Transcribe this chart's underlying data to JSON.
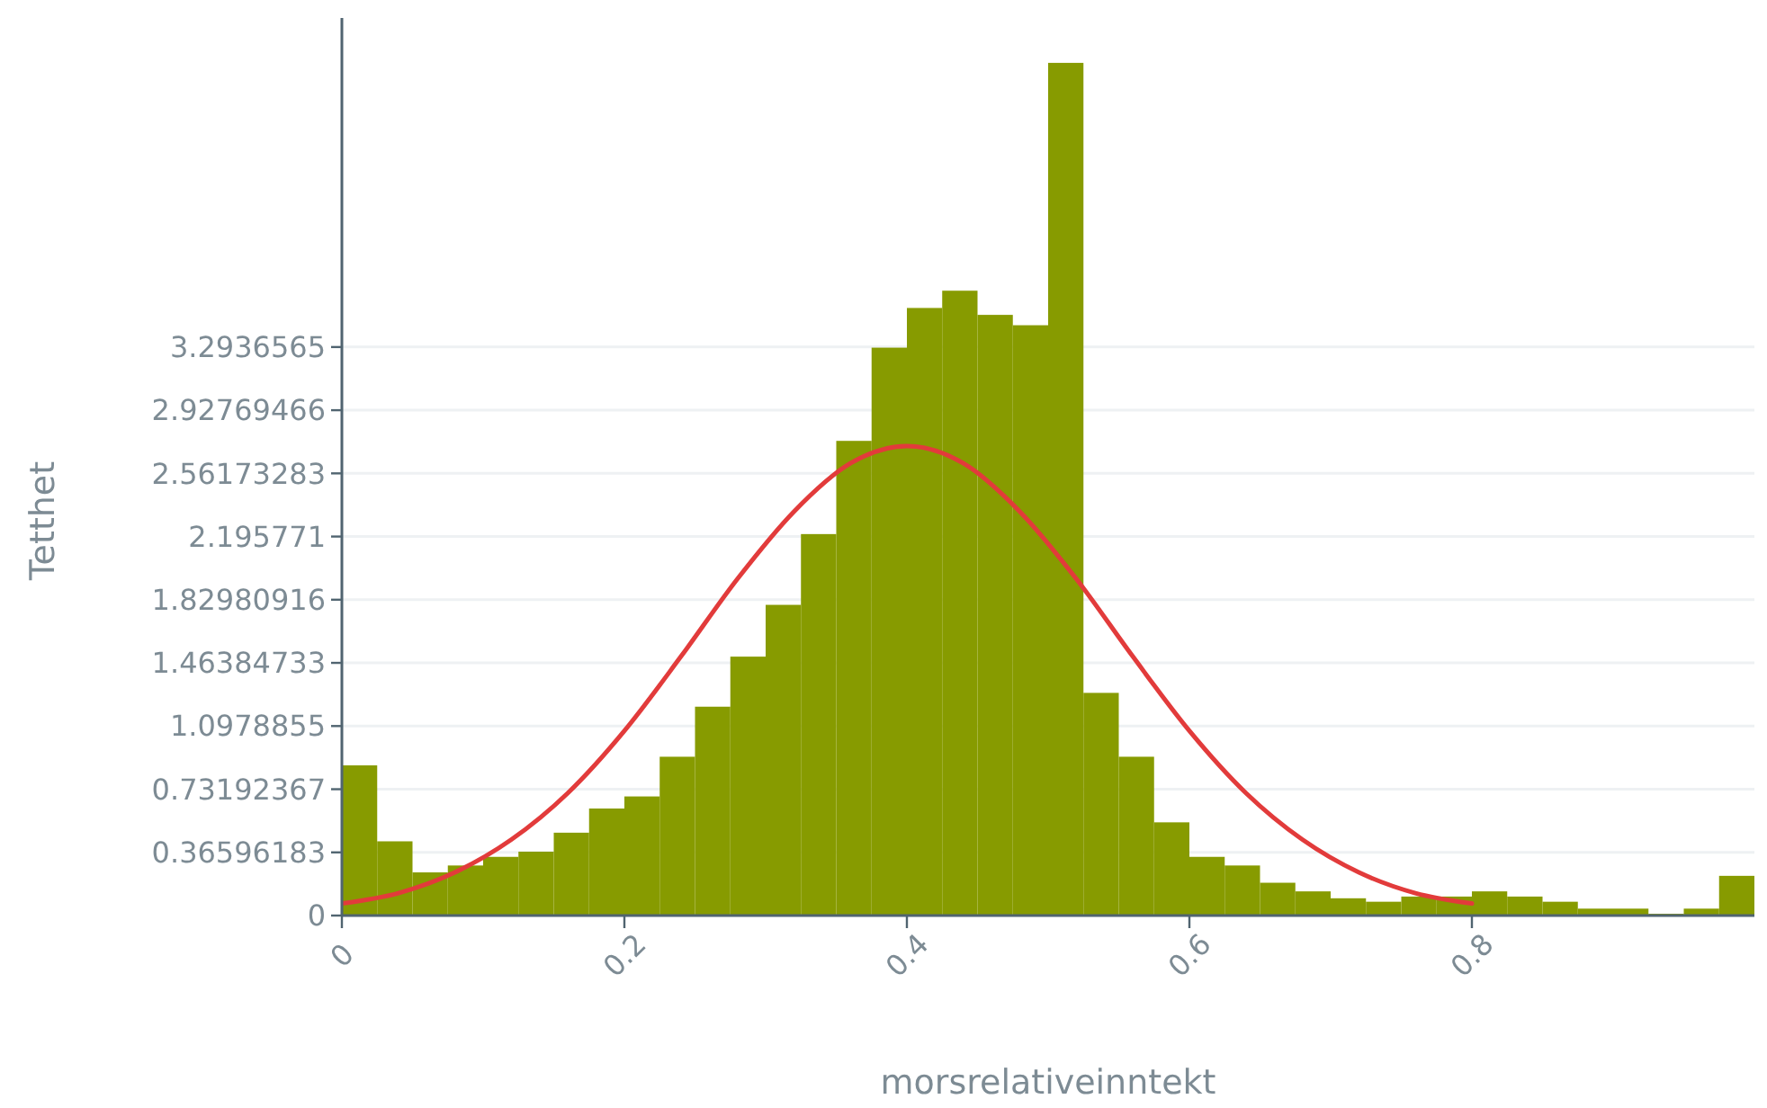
{
  "chart_data": {
    "type": "histogram",
    "xlabel": "morsrelativeinntekt",
    "ylabel": "Tetthet",
    "bins": [
      0,
      0.025,
      0.05,
      0.075,
      0.1,
      0.125,
      0.15,
      0.175,
      0.2,
      0.225,
      0.25,
      0.275,
      0.3,
      0.325,
      0.35,
      0.375,
      0.4,
      0.425,
      0.45,
      0.475,
      0.5,
      0.525,
      0.55,
      0.575,
      0.6,
      0.625,
      0.65,
      0.675,
      0.7,
      0.725,
      0.75,
      0.775,
      0.8,
      0.825,
      0.85,
      0.875,
      0.9,
      0.925,
      0.95,
      0.975,
      1
    ],
    "values": [
      0.87,
      0.43,
      0.25,
      0.29,
      0.34,
      0.37,
      0.48,
      0.62,
      0.69,
      0.92,
      1.21,
      1.5,
      1.8,
      2.21,
      2.75,
      3.29,
      3.52,
      3.62,
      3.48,
      3.42,
      4.94,
      1.29,
      0.92,
      0.54,
      0.34,
      0.29,
      0.19,
      0.14,
      0.1,
      0.08,
      0.11,
      0.11,
      0.14,
      0.11,
      0.08,
      0.04,
      0.04,
      0.01,
      0.04,
      0.23
    ],
    "color": "#879b00",
    "series": [
      {
        "type": "line",
        "color": "#e23b3b",
        "x": [
          0,
          0.04,
          0.08,
          0.12,
          0.16,
          0.2,
          0.24,
          0.28,
          0.32,
          0.36,
          0.4,
          0.44,
          0.48,
          0.52,
          0.56,
          0.6,
          0.64,
          0.68,
          0.72,
          0.76,
          0.8
        ],
        "values": [
          0.07,
          0.13,
          0.25,
          0.44,
          0.71,
          1.07,
          1.5,
          1.95,
          2.34,
          2.62,
          2.72,
          2.62,
          2.34,
          1.95,
          1.5,
          1.07,
          0.71,
          0.44,
          0.25,
          0.13,
          0.07
        ]
      }
    ],
    "xlim": [
      0,
      1
    ],
    "ylim": [
      0,
      5.2
    ],
    "xticks": [
      0,
      0.2,
      0.4,
      0.6,
      0.8
    ],
    "yticks": [
      0,
      0.36596183,
      0.73192367,
      1.0978855,
      1.46384733,
      1.82980916,
      2.195771,
      2.56173283,
      2.92769466,
      3.2936565
    ],
    "grid": "y",
    "marker": "none",
    "line_style": "solid"
  }
}
